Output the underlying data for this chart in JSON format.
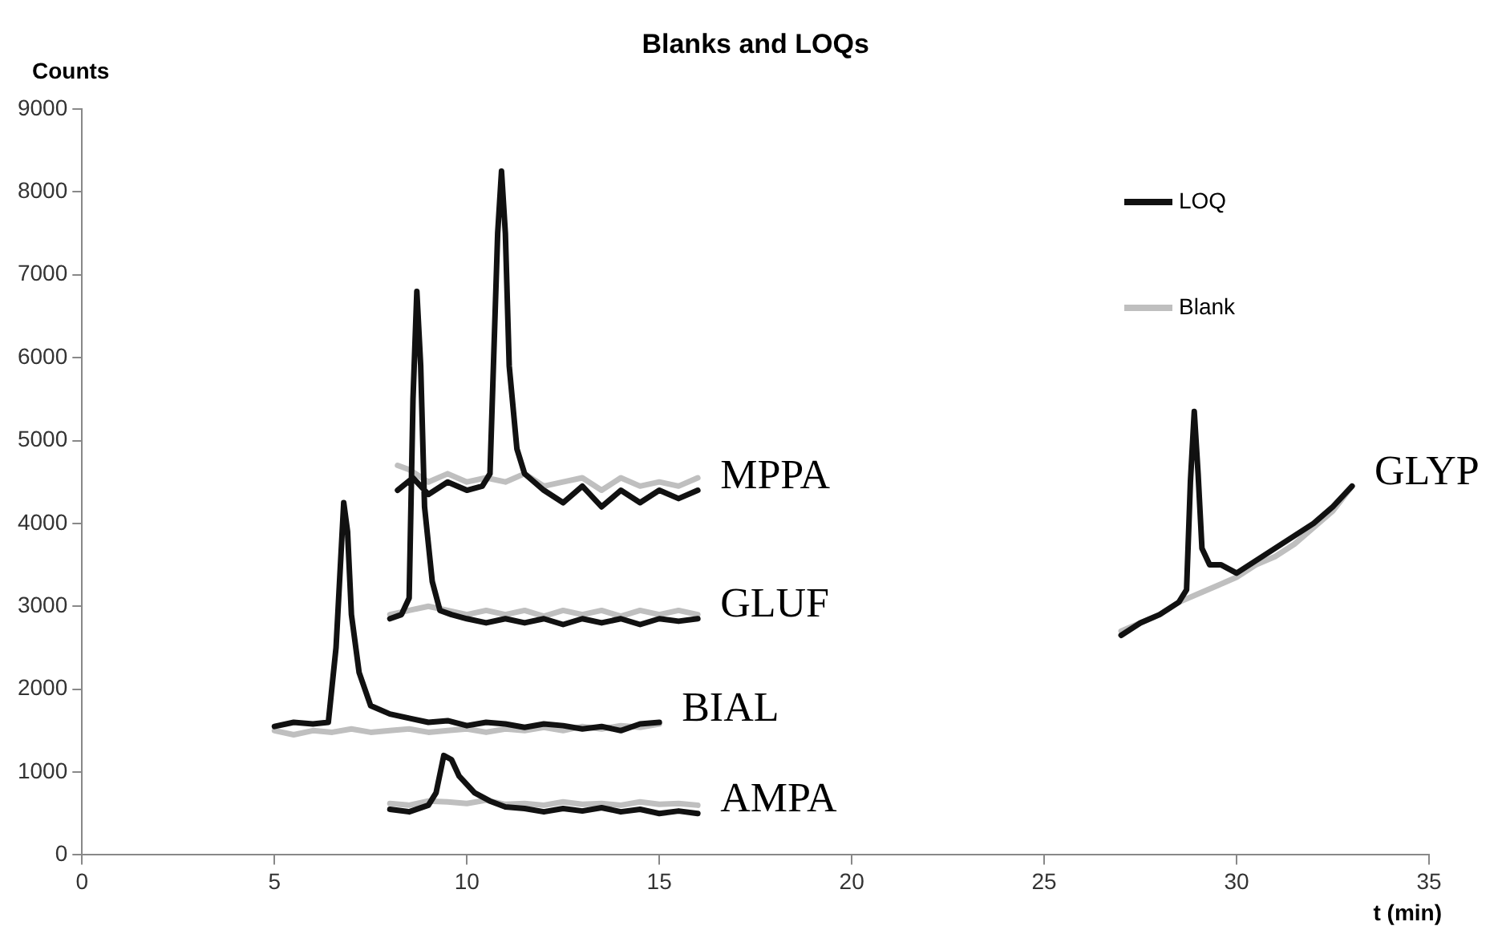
{
  "chart_data": {
    "type": "line",
    "title": "Blanks and LOQs",
    "xlabel": "t (min)",
    "ylabel": "Counts",
    "xlim": [
      0,
      35
    ],
    "xticks": [
      0,
      5,
      10,
      15,
      20,
      25,
      30,
      35
    ],
    "ylim": [
      0,
      9000
    ],
    "yticks": [
      0,
      1000,
      2000,
      3000,
      4000,
      5000,
      6000,
      7000,
      8000,
      9000
    ],
    "grid": false,
    "legend": "top right",
    "marker": "none",
    "line_style": "solid",
    "series": [
      {
        "name": "LOQ",
        "color": "#111111",
        "x": [
          8.2,
          8.6,
          9.0,
          9.5,
          10.0,
          10.4,
          10.6,
          10.8,
          10.9,
          11.0,
          11.1,
          11.3,
          11.5,
          12.0,
          12.5,
          13.0,
          13.5,
          14.0,
          14.5,
          15.0,
          15.5,
          16.0,
          null,
          8.0,
          8.3,
          8.5,
          8.6,
          8.7,
          8.8,
          8.9,
          9.1,
          9.3,
          9.6,
          10.0,
          10.5,
          11.0,
          11.5,
          12.0,
          12.5,
          13.0,
          13.5,
          14.0,
          14.5,
          15.0,
          15.5,
          16.0,
          null,
          5.0,
          5.5,
          6.0,
          6.4,
          6.6,
          6.8,
          6.9,
          7.0,
          7.2,
          7.5,
          8.0,
          8.5,
          9.0,
          9.5,
          10.0,
          10.5,
          11.0,
          11.5,
          12.0,
          12.5,
          13.0,
          13.5,
          14.0,
          14.5,
          15.0,
          null,
          8.0,
          8.5,
          9.0,
          9.2,
          9.4,
          9.6,
          9.8,
          10.2,
          10.6,
          11.0,
          11.5,
          12.0,
          12.5,
          13.0,
          13.5,
          14.0,
          14.5,
          15.0,
          15.5,
          16.0,
          null,
          27.0,
          27.5,
          28.0,
          28.5,
          28.7,
          28.8,
          28.9,
          29.0,
          29.1,
          29.3,
          29.6,
          30.0,
          30.5,
          31.0,
          31.5,
          32.0,
          32.5,
          33.0
        ],
        "values": [
          4400,
          4550,
          4350,
          4500,
          4400,
          4450,
          4600,
          7500,
          8250,
          7500,
          5900,
          4900,
          4600,
          4400,
          4250,
          4450,
          4200,
          4400,
          4250,
          4400,
          4300,
          4400,
          null,
          2850,
          2900,
          3100,
          5500,
          6800,
          5900,
          4200,
          3300,
          2950,
          2900,
          2850,
          2800,
          2850,
          2800,
          2850,
          2780,
          2850,
          2800,
          2850,
          2780,
          2850,
          2820,
          2850,
          null,
          1550,
          1600,
          1580,
          1600,
          2500,
          4250,
          3900,
          2900,
          2200,
          1800,
          1700,
          1650,
          1600,
          1620,
          1560,
          1600,
          1580,
          1540,
          1580,
          1560,
          1520,
          1550,
          1500,
          1580,
          1600,
          null,
          550,
          520,
          600,
          750,
          1200,
          1150,
          950,
          750,
          650,
          580,
          560,
          520,
          560,
          530,
          570,
          520,
          550,
          500,
          530,
          500,
          null,
          2650,
          2800,
          2900,
          3050,
          3200,
          4500,
          5350,
          4600,
          3700,
          3500,
          3500,
          3400,
          3550,
          3700,
          3850,
          4000,
          4200,
          4450
        ]
      },
      {
        "name": "Blank",
        "color": "#bfbfbf",
        "x": [
          8.2,
          8.5,
          9.0,
          9.5,
          10.0,
          10.5,
          11.0,
          11.5,
          12.0,
          12.5,
          13.0,
          13.5,
          14.0,
          14.5,
          15.0,
          15.5,
          16.0,
          null,
          8.0,
          8.5,
          9.0,
          9.5,
          10.0,
          10.5,
          11.0,
          11.5,
          12.0,
          12.5,
          13.0,
          13.5,
          14.0,
          14.5,
          15.0,
          15.5,
          16.0,
          null,
          5.0,
          5.5,
          6.0,
          6.5,
          7.0,
          7.5,
          8.0,
          8.5,
          9.0,
          9.5,
          10.0,
          10.5,
          11.0,
          11.5,
          12.0,
          12.5,
          13.0,
          13.5,
          14.0,
          14.5,
          15.0,
          null,
          8.0,
          8.5,
          9.0,
          9.5,
          10.0,
          10.5,
          11.0,
          11.5,
          12.0,
          12.5,
          13.0,
          13.5,
          14.0,
          14.5,
          15.0,
          15.5,
          16.0,
          null,
          27.0,
          27.5,
          28.0,
          28.5,
          29.0,
          29.5,
          30.0,
          30.5,
          31.0,
          31.5,
          32.0,
          32.5,
          33.0
        ],
        "values": [
          4700,
          4650,
          4500,
          4600,
          4500,
          4550,
          4500,
          4600,
          4450,
          4500,
          4550,
          4400,
          4550,
          4450,
          4500,
          4450,
          4550,
          null,
          2900,
          2950,
          3000,
          2950,
          2900,
          2950,
          2900,
          2950,
          2880,
          2950,
          2900,
          2950,
          2880,
          2950,
          2900,
          2950,
          2900,
          null,
          1500,
          1450,
          1500,
          1480,
          1520,
          1480,
          1500,
          1520,
          1480,
          1500,
          1520,
          1480,
          1520,
          1500,
          1540,
          1500,
          1550,
          1520,
          1560,
          1540,
          1580,
          null,
          620,
          600,
          650,
          640,
          620,
          660,
          610,
          620,
          600,
          640,
          610,
          620,
          600,
          640,
          610,
          620,
          600,
          null,
          2700,
          2800,
          2900,
          3050,
          3150,
          3250,
          3350,
          3500,
          3600,
          3750,
          3950,
          4150,
          4450
        ]
      }
    ],
    "annotations": [
      "MPPA",
      "GLUF",
      "BIAL",
      "AMPA",
      "GLYP"
    ]
  }
}
